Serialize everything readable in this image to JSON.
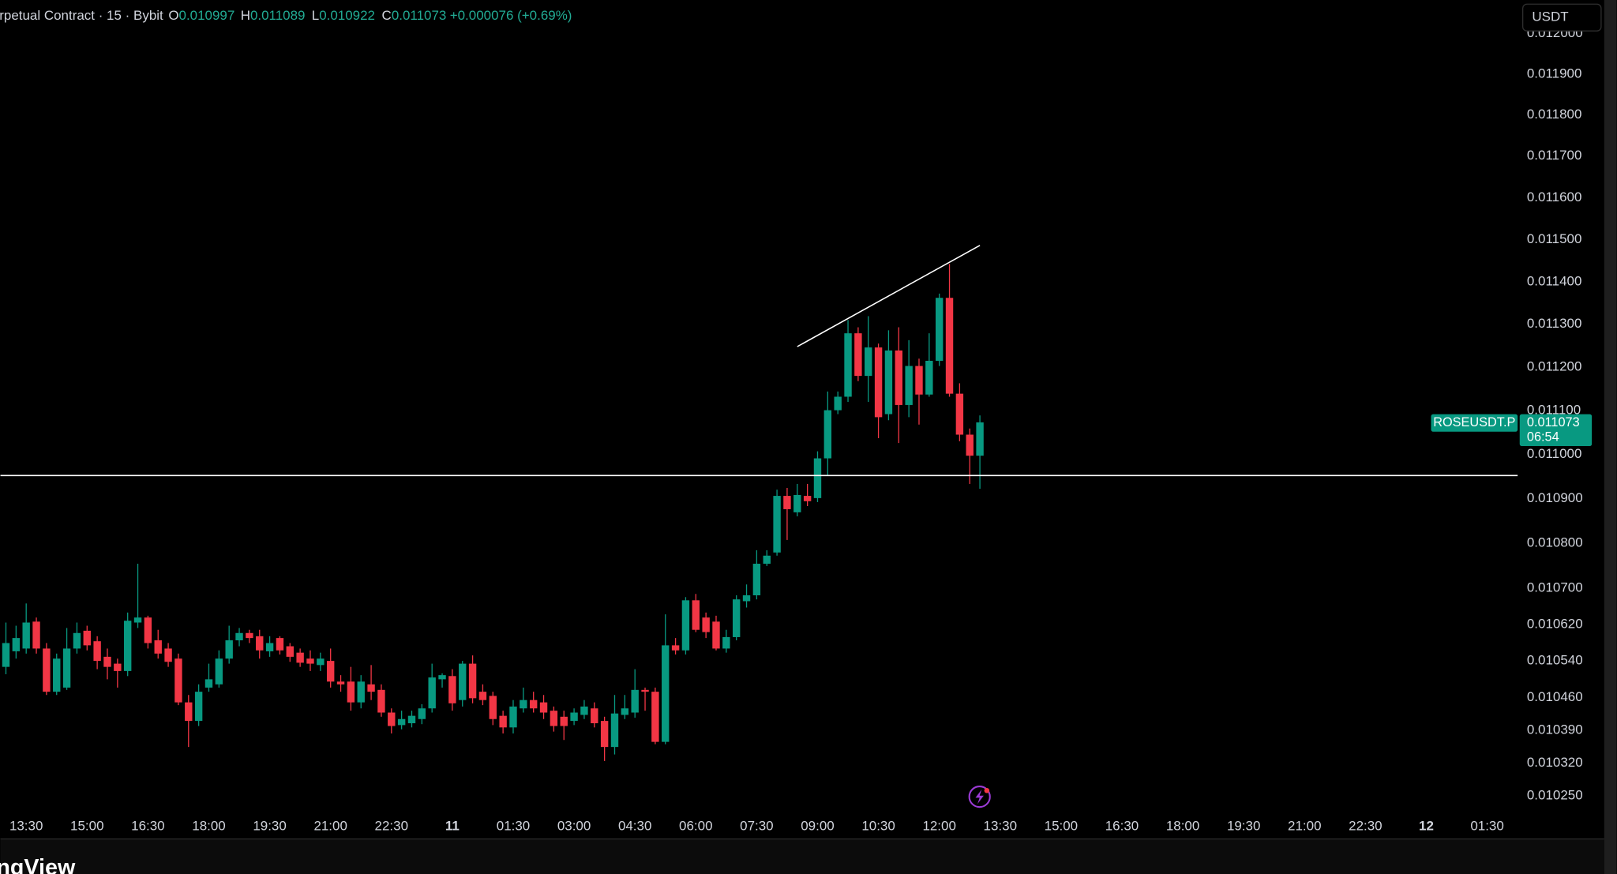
{
  "header": {
    "symbol": "rpetual Contract · 15 · Bybit",
    "o_label": "O",
    "h_label": "H",
    "l_label": "L",
    "c_label": "C",
    "change": "+0.000076 (+0.69%)"
  },
  "currency": "USDT",
  "price_tag": {
    "symbol": "ROSEUSDT.P",
    "countdown": "06:54"
  },
  "watermark": "ngView",
  "chart_data": {
    "type": "candlestick",
    "x": [
      13,
      13.25,
      13.5,
      13.75,
      14,
      14.25,
      14.5,
      14.75,
      15,
      15.25,
      15.5,
      15.75,
      16,
      16.25,
      16.5,
      16.75,
      17,
      17.25,
      17.5,
      17.75,
      18,
      18.25,
      18.5,
      18.75,
      19,
      19.25,
      19.5,
      19.75,
      20,
      20.25,
      20.5,
      20.75,
      21,
      21.25,
      21.5,
      21.75,
      22,
      22.25,
      22.5,
      22.75,
      23,
      23.25,
      23.5,
      23.75,
      24,
      24.25,
      24.5,
      24.75,
      25,
      25.25,
      25.5,
      25.75,
      26,
      26.25,
      26.5,
      26.75,
      27,
      27.25,
      27.5,
      27.75,
      28,
      28.25,
      28.5,
      28.75,
      29,
      29.25,
      29.5,
      29.75,
      30,
      30.25,
      30.5,
      30.75,
      31,
      31.25,
      31.5,
      31.75,
      32,
      32.25,
      32.5,
      32.75,
      33,
      33.25,
      33.5,
      33.75,
      34,
      34.25,
      34.5,
      34.75,
      35,
      35.25,
      35.5,
      35.75,
      36,
      36.25,
      36.5,
      36.75,
      37
    ],
    "open": [
      0.010527,
      0.010561,
      0.010567,
      0.010626,
      0.010567,
      0.010473,
      0.010482,
      0.010567,
      0.010606,
      0.010583,
      0.010549,
      0.010534,
      0.010518,
      0.010624,
      0.010635,
      0.010585,
      0.010567,
      0.010545,
      0.01045,
      0.01041,
      0.010482,
      0.010489,
      0.010545,
      0.010585,
      0.010601,
      0.010594,
      0.010561,
      0.01059,
      0.010572,
      0.010558,
      0.010545,
      0.010531,
      0.01054,
      0.010495,
      0.010495,
      0.01045,
      0.010489,
      0.010477,
      0.010428,
      0.010401,
      0.010405,
      0.010414,
      0.010437,
      0.0105,
      0.010507,
      0.010455,
      0.010534,
      0.010473,
      0.010464,
      0.010421,
      0.010396,
      0.010437,
      0.010455,
      0.01045,
      0.010432,
      0.010419,
      0.01041,
      0.010423,
      0.010437,
      0.01041,
      0.010354,
      0.010423,
      0.010428,
      0.010477,
      0.010473,
      0.010365,
      0.010574,
      0.010563,
      0.010673,
      0.010635,
      0.010626,
      0.010567,
      0.010592,
      0.010671,
      0.010684,
      0.010754,
      0.010779,
      0.010906,
      0.010869,
      0.010906,
      0.010901,
      0.010991,
      0.011101,
      0.011132,
      0.011279,
      0.01118,
      0.011246,
      0.011092,
      0.011239,
      0.011113,
      0.011203,
      0.011137,
      0.011215,
      0.011362,
      0.011139,
      0.011045,
      0.010997
    ],
    "high": [
      0.010624,
      0.010617,
      0.010666,
      0.010635,
      0.010579,
      0.010556,
      0.010612,
      0.010624,
      0.010617,
      0.010594,
      0.010567,
      0.010545,
      0.010646,
      0.010754,
      0.010639,
      0.010608,
      0.010579,
      0.010556,
      0.010466,
      0.010489,
      0.010534,
      0.010563,
      0.010617,
      0.010612,
      0.010608,
      0.010608,
      0.010594,
      0.010594,
      0.010579,
      0.010567,
      0.010563,
      0.010558,
      0.010567,
      0.010509,
      0.010527,
      0.010509,
      0.010531,
      0.010489,
      0.010437,
      0.010432,
      0.010432,
      0.010446,
      0.010534,
      0.010513,
      0.010522,
      0.01054,
      0.010552,
      0.010489,
      0.010473,
      0.010432,
      0.010455,
      0.010482,
      0.010473,
      0.010466,
      0.010441,
      0.010432,
      0.010437,
      0.010455,
      0.01045,
      0.010419,
      0.010466,
      0.010466,
      0.010522,
      0.010482,
      0.010482,
      0.010642,
      0.01059,
      0.01068,
      0.010687,
      0.010646,
      0.010639,
      0.010608,
      0.010684,
      0.010708,
      0.010784,
      0.010784,
      0.01092,
      0.010924,
      0.010933,
      0.010933,
      0.011007,
      0.011144,
      0.011144,
      0.01131,
      0.011293,
      0.011319,
      0.011255,
      0.011286,
      0.011293,
      0.011263,
      0.01122,
      0.011279,
      0.011372,
      0.011442,
      0.011163,
      0.011059,
      0.011089
    ],
    "low": [
      0.010511,
      0.010545,
      0.010556,
      0.010556,
      0.010466,
      0.010466,
      0.010477,
      0.010556,
      0.010563,
      0.010522,
      0.0105,
      0.010482,
      0.010507,
      0.010612,
      0.010567,
      0.010545,
      0.010527,
      0.010444,
      0.010354,
      0.010399,
      0.010473,
      0.010482,
      0.010534,
      0.010572,
      0.010579,
      0.010545,
      0.010549,
      0.010554,
      0.010538,
      0.010527,
      0.010518,
      0.010518,
      0.010482,
      0.010473,
      0.010432,
      0.010437,
      0.010455,
      0.010419,
      0.010383,
      0.010392,
      0.010396,
      0.010403,
      0.010428,
      0.010482,
      0.010432,
      0.010441,
      0.010448,
      0.010444,
      0.010401,
      0.010383,
      0.010383,
      0.010428,
      0.010428,
      0.010414,
      0.010387,
      0.010369,
      0.010401,
      0.010414,
      0.010396,
      0.010324,
      0.010338,
      0.010414,
      0.010417,
      0.010432,
      0.01036,
      0.01036,
      0.010554,
      0.010554,
      0.010603,
      0.01059,
      0.010563,
      0.010558,
      0.010585,
      0.010657,
      0.010675,
      0.010749,
      0.010772,
      0.010807,
      0.01086,
      0.010883,
      0.010892,
      0.010952,
      0.011092,
      0.01112,
      0.011168,
      0.01112,
      0.011037,
      0.011078,
      0.011026,
      0.011085,
      0.011068,
      0.011132,
      0.011203,
      0.011132,
      0.01103,
      0.010933,
      0.010922
    ],
    "close": [
      0.010579,
      0.01059,
      0.010624,
      0.010567,
      0.010473,
      0.010545,
      0.010567,
      0.010601,
      0.010574,
      0.01054,
      0.010527,
      0.010518,
      0.010628,
      0.010635,
      0.010579,
      0.010556,
      0.010538,
      0.01045,
      0.01041,
      0.010473,
      0.0105,
      0.010545,
      0.010585,
      0.010601,
      0.01059,
      0.010563,
      0.010579,
      0.010563,
      0.010549,
      0.010536,
      0.010534,
      0.010545,
      0.010495,
      0.010489,
      0.01045,
      0.010495,
      0.010473,
      0.010428,
      0.010399,
      0.010414,
      0.010421,
      0.010437,
      0.010504,
      0.010509,
      0.010448,
      0.010534,
      0.010459,
      0.010455,
      0.010414,
      0.010396,
      0.010441,
      0.010455,
      0.010437,
      0.010428,
      0.010399,
      0.010399,
      0.010428,
      0.010441,
      0.010405,
      0.010354,
      0.010426,
      0.010437,
      0.010477,
      0.010473,
      0.010365,
      0.010574,
      0.010563,
      0.010673,
      0.010608,
      0.010603,
      0.010567,
      0.010592,
      0.010675,
      0.010684,
      0.010754,
      0.010772,
      0.010906,
      0.010876,
      0.010908,
      0.010894,
      0.010991,
      0.011101,
      0.011132,
      0.011279,
      0.01118,
      0.011246,
      0.011085,
      0.011239,
      0.011113,
      0.011203,
      0.011137,
      0.011215,
      0.011362,
      0.011139,
      0.011045,
      0.010997,
      0.011073
    ],
    "up_color": "#089981",
    "down_color": "#f23645",
    "line_color": "#ffffff",
    "log_scale": true,
    "grid": false,
    "xlim": [
      12.865,
      50.25
    ],
    "xticks": [
      {
        "value": 13.5,
        "label": "13:30"
      },
      {
        "value": 15,
        "label": "15:00"
      },
      {
        "value": 16.5,
        "label": "16:30"
      },
      {
        "value": 18,
        "label": "18:00"
      },
      {
        "value": 19.5,
        "label": "19:30"
      },
      {
        "value": 21,
        "label": "21:00"
      },
      {
        "value": 22.5,
        "label": "22:30"
      },
      {
        "value": 24,
        "label": "11"
      },
      {
        "value": 25.5,
        "label": "01:30"
      },
      {
        "value": 27,
        "label": "03:00"
      },
      {
        "value": 28.5,
        "label": "04:30"
      },
      {
        "value": 30,
        "label": "06:00"
      },
      {
        "value": 31.5,
        "label": "07:30"
      },
      {
        "value": 33,
        "label": "09:00"
      },
      {
        "value": 34.5,
        "label": "10:30"
      },
      {
        "value": 36,
        "label": "12:00"
      },
      {
        "value": 37.5,
        "label": "13:30"
      },
      {
        "value": 39,
        "label": "15:00"
      },
      {
        "value": 40.5,
        "label": "16:30"
      },
      {
        "value": 42,
        "label": "18:00"
      },
      {
        "value": 43.5,
        "label": "19:30"
      },
      {
        "value": 45,
        "label": "21:00"
      },
      {
        "value": 46.5,
        "label": "22:30"
      },
      {
        "value": 48,
        "label": "12"
      },
      {
        "value": 49.5,
        "label": "01:30"
      }
    ],
    "ylim": [
      0.010211,
      0.012084
    ],
    "yticks": [
      {
        "value": 0.012,
        "label": "0.012000"
      },
      {
        "value": 0.0119,
        "label": "0.011900"
      },
      {
        "value": 0.0118,
        "label": "0.011800"
      },
      {
        "value": 0.0117,
        "label": "0.011700"
      },
      {
        "value": 0.0116,
        "label": "0.011600"
      },
      {
        "value": 0.0115,
        "label": "0.011500"
      },
      {
        "value": 0.0114,
        "label": "0.011400"
      },
      {
        "value": 0.0113,
        "label": "0.011300"
      },
      {
        "value": 0.0112,
        "label": "0.011200"
      },
      {
        "value": 0.0111,
        "label": "0.011100"
      },
      {
        "value": 0.011,
        "label": "0.011000"
      },
      {
        "value": 0.0109,
        "label": "0.010900"
      },
      {
        "value": 0.0108,
        "label": "0.010800"
      },
      {
        "value": 0.0107,
        "label": "0.010700"
      },
      {
        "value": 0.01062,
        "label": "0.010620"
      },
      {
        "value": 0.01054,
        "label": "0.010540"
      },
      {
        "value": 0.01046,
        "label": "0.010460"
      },
      {
        "value": 0.01039,
        "label": "0.010390"
      },
      {
        "value": 0.01032,
        "label": "0.010320"
      },
      {
        "value": 0.01025,
        "label": "0.010250"
      }
    ],
    "hlines": [
      0.010952
    ],
    "trendlines": [
      {
        "x": [
          32.5,
          37
        ],
        "y": [
          0.011248,
          0.011486
        ]
      }
    ]
  }
}
